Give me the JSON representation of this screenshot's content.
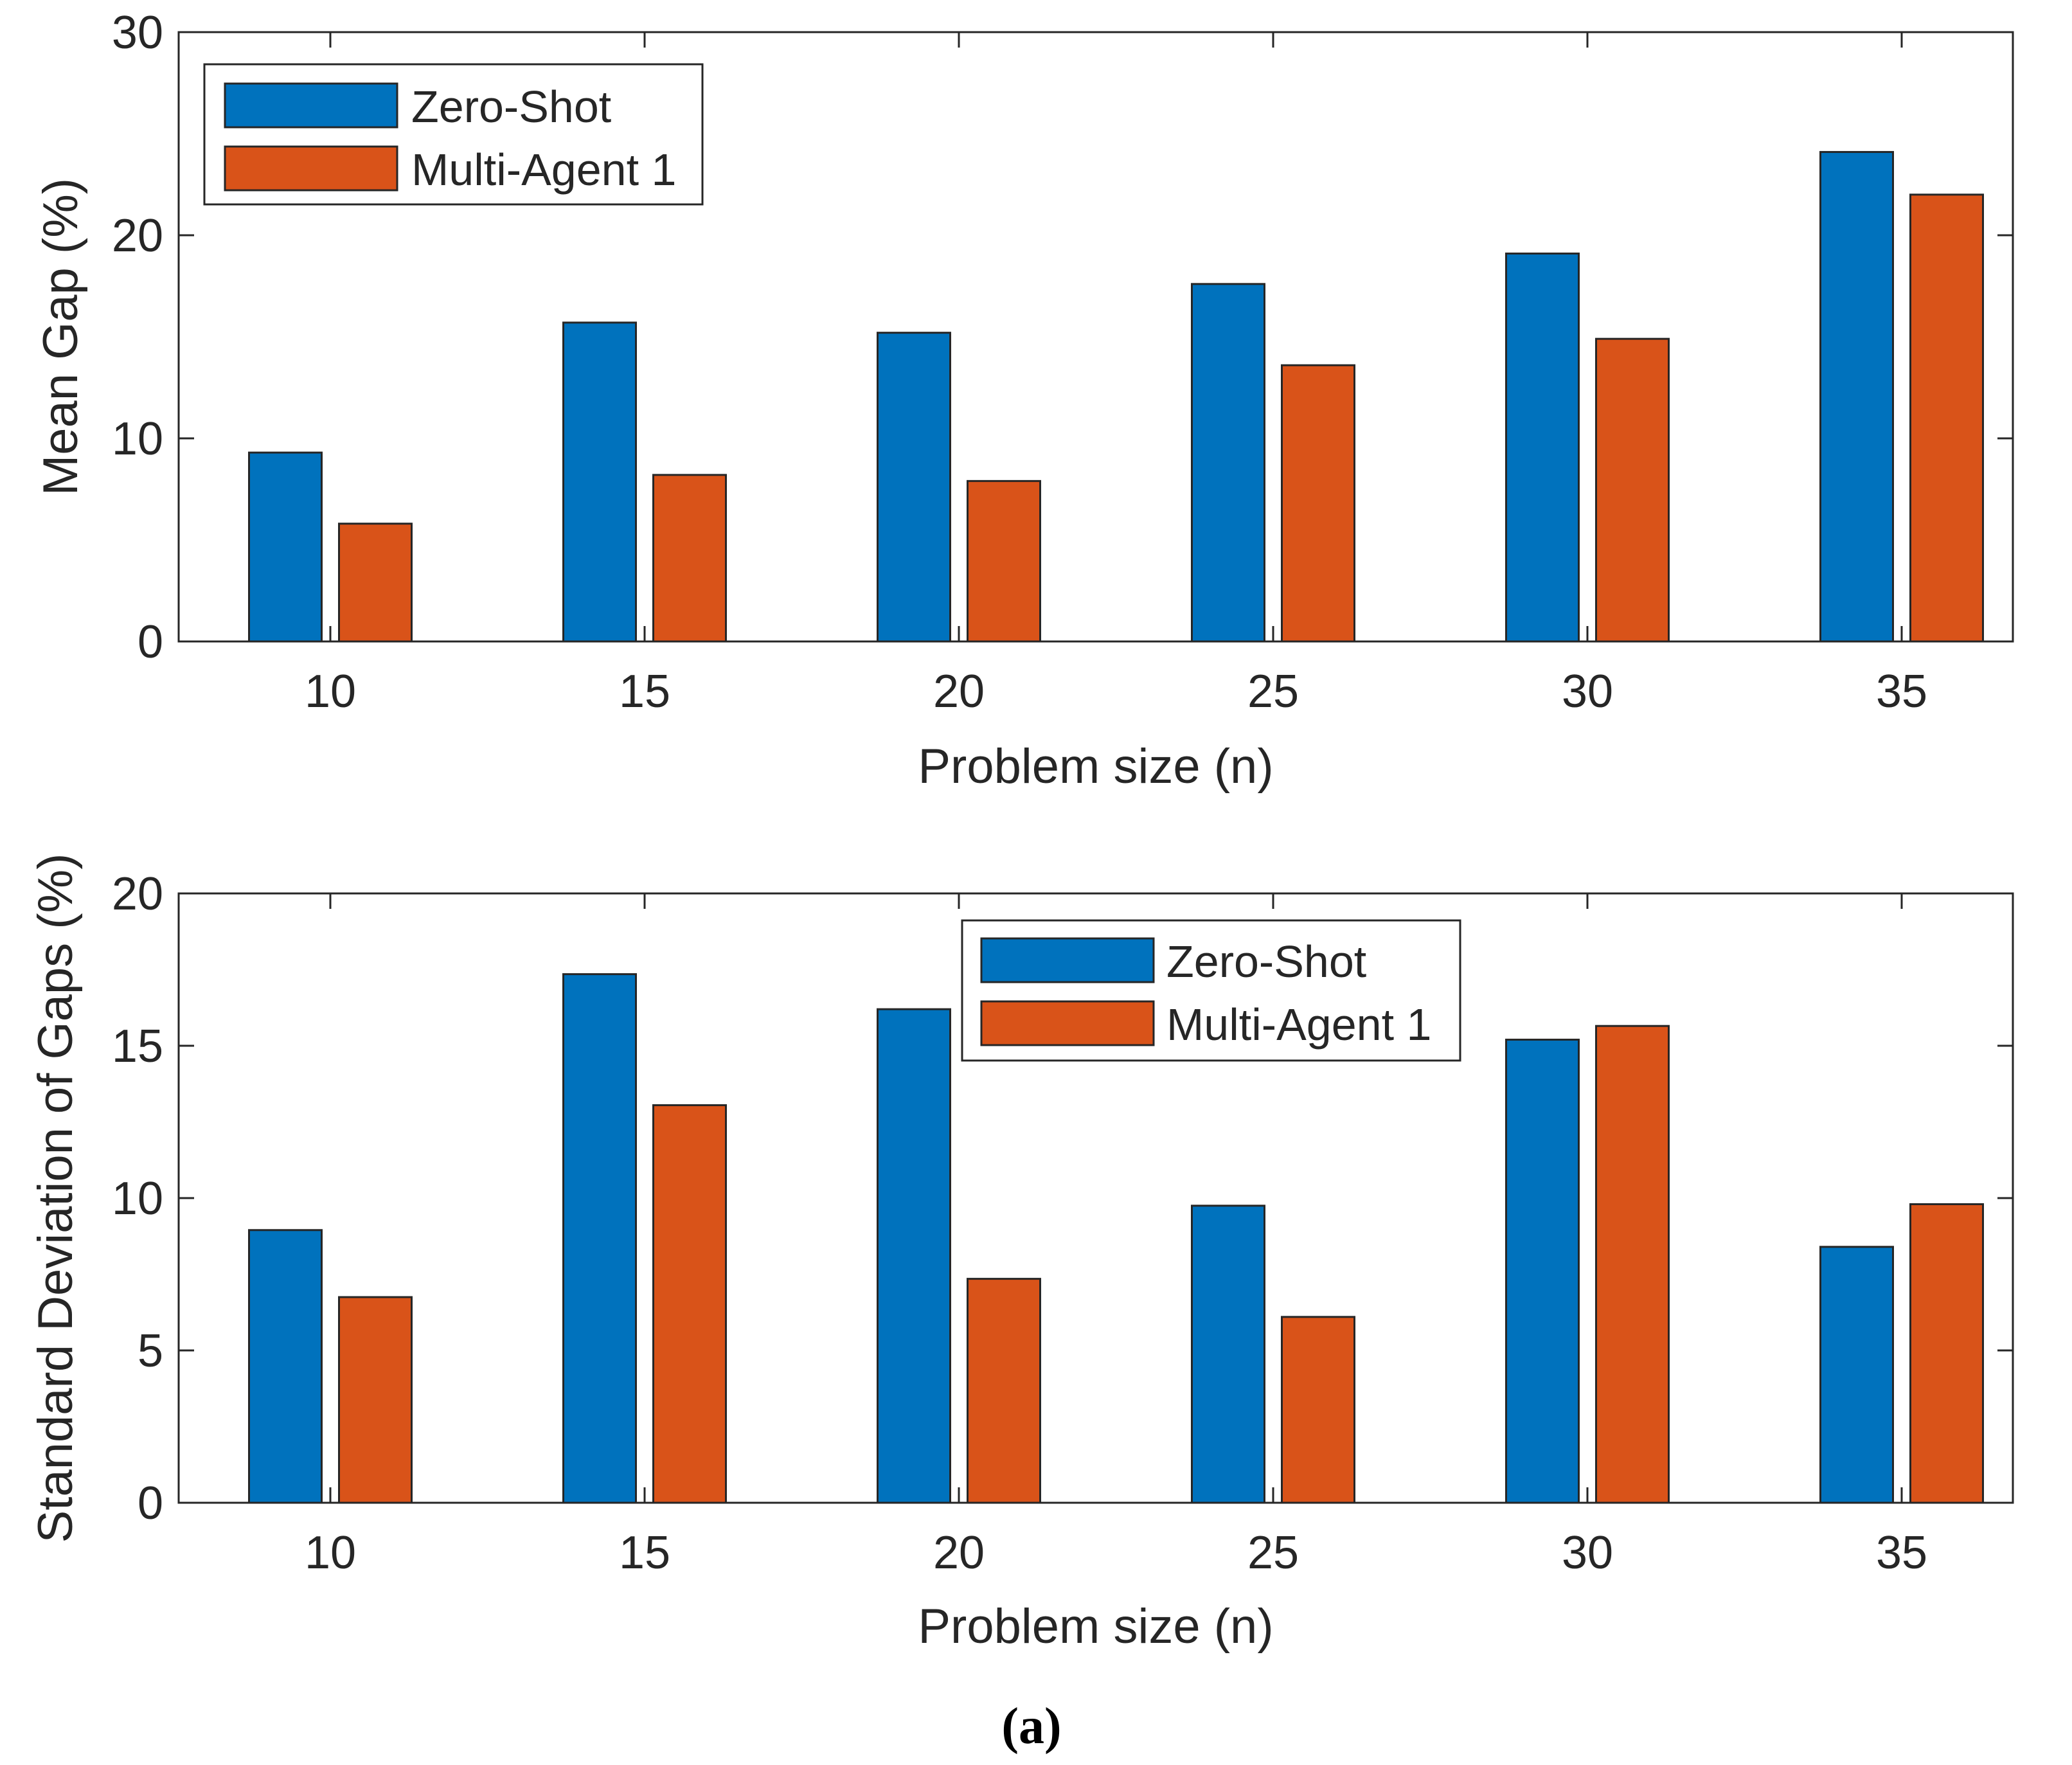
{
  "chart_data": [
    {
      "type": "bar",
      "title": "",
      "xlabel": "Problem size (n)",
      "ylabel": "Mean Gap (%)",
      "categories": [
        "10",
        "15",
        "20",
        "25",
        "30",
        "35"
      ],
      "series": [
        {
          "name": "Zero-Shot",
          "color": "#0072BD",
          "values": [
            9.3,
            15.7,
            15.2,
            17.6,
            19.1,
            24.1
          ]
        },
        {
          "name": "Multi-Agent 1",
          "color": "#D95319",
          "values": [
            5.8,
            8.2,
            7.9,
            13.6,
            14.9,
            22.0
          ]
        }
      ],
      "ylim": [
        0,
        30
      ],
      "yticks": [
        "0",
        "10",
        "20",
        "30"
      ],
      "legend_position": "top-left",
      "grid": false
    },
    {
      "type": "bar",
      "title": "",
      "xlabel": "Problem size (n)",
      "ylabel": "Standard Deviation of Gaps (%)",
      "categories": [
        "10",
        "15",
        "20",
        "25",
        "30",
        "35"
      ],
      "series": [
        {
          "name": "Zero-Shot",
          "color": "#0072BD",
          "values": [
            8.95,
            17.35,
            16.2,
            9.75,
            15.2,
            8.4
          ]
        },
        {
          "name": "Multi-Agent 1",
          "color": "#D95319",
          "values": [
            6.75,
            13.05,
            7.35,
            6.1,
            15.65,
            9.8
          ]
        }
      ],
      "ylim": [
        0,
        20
      ],
      "yticks": [
        "0",
        "5",
        "10",
        "15",
        "20"
      ],
      "legend_position": "top-center",
      "grid": false
    }
  ],
  "caption": "(a)"
}
